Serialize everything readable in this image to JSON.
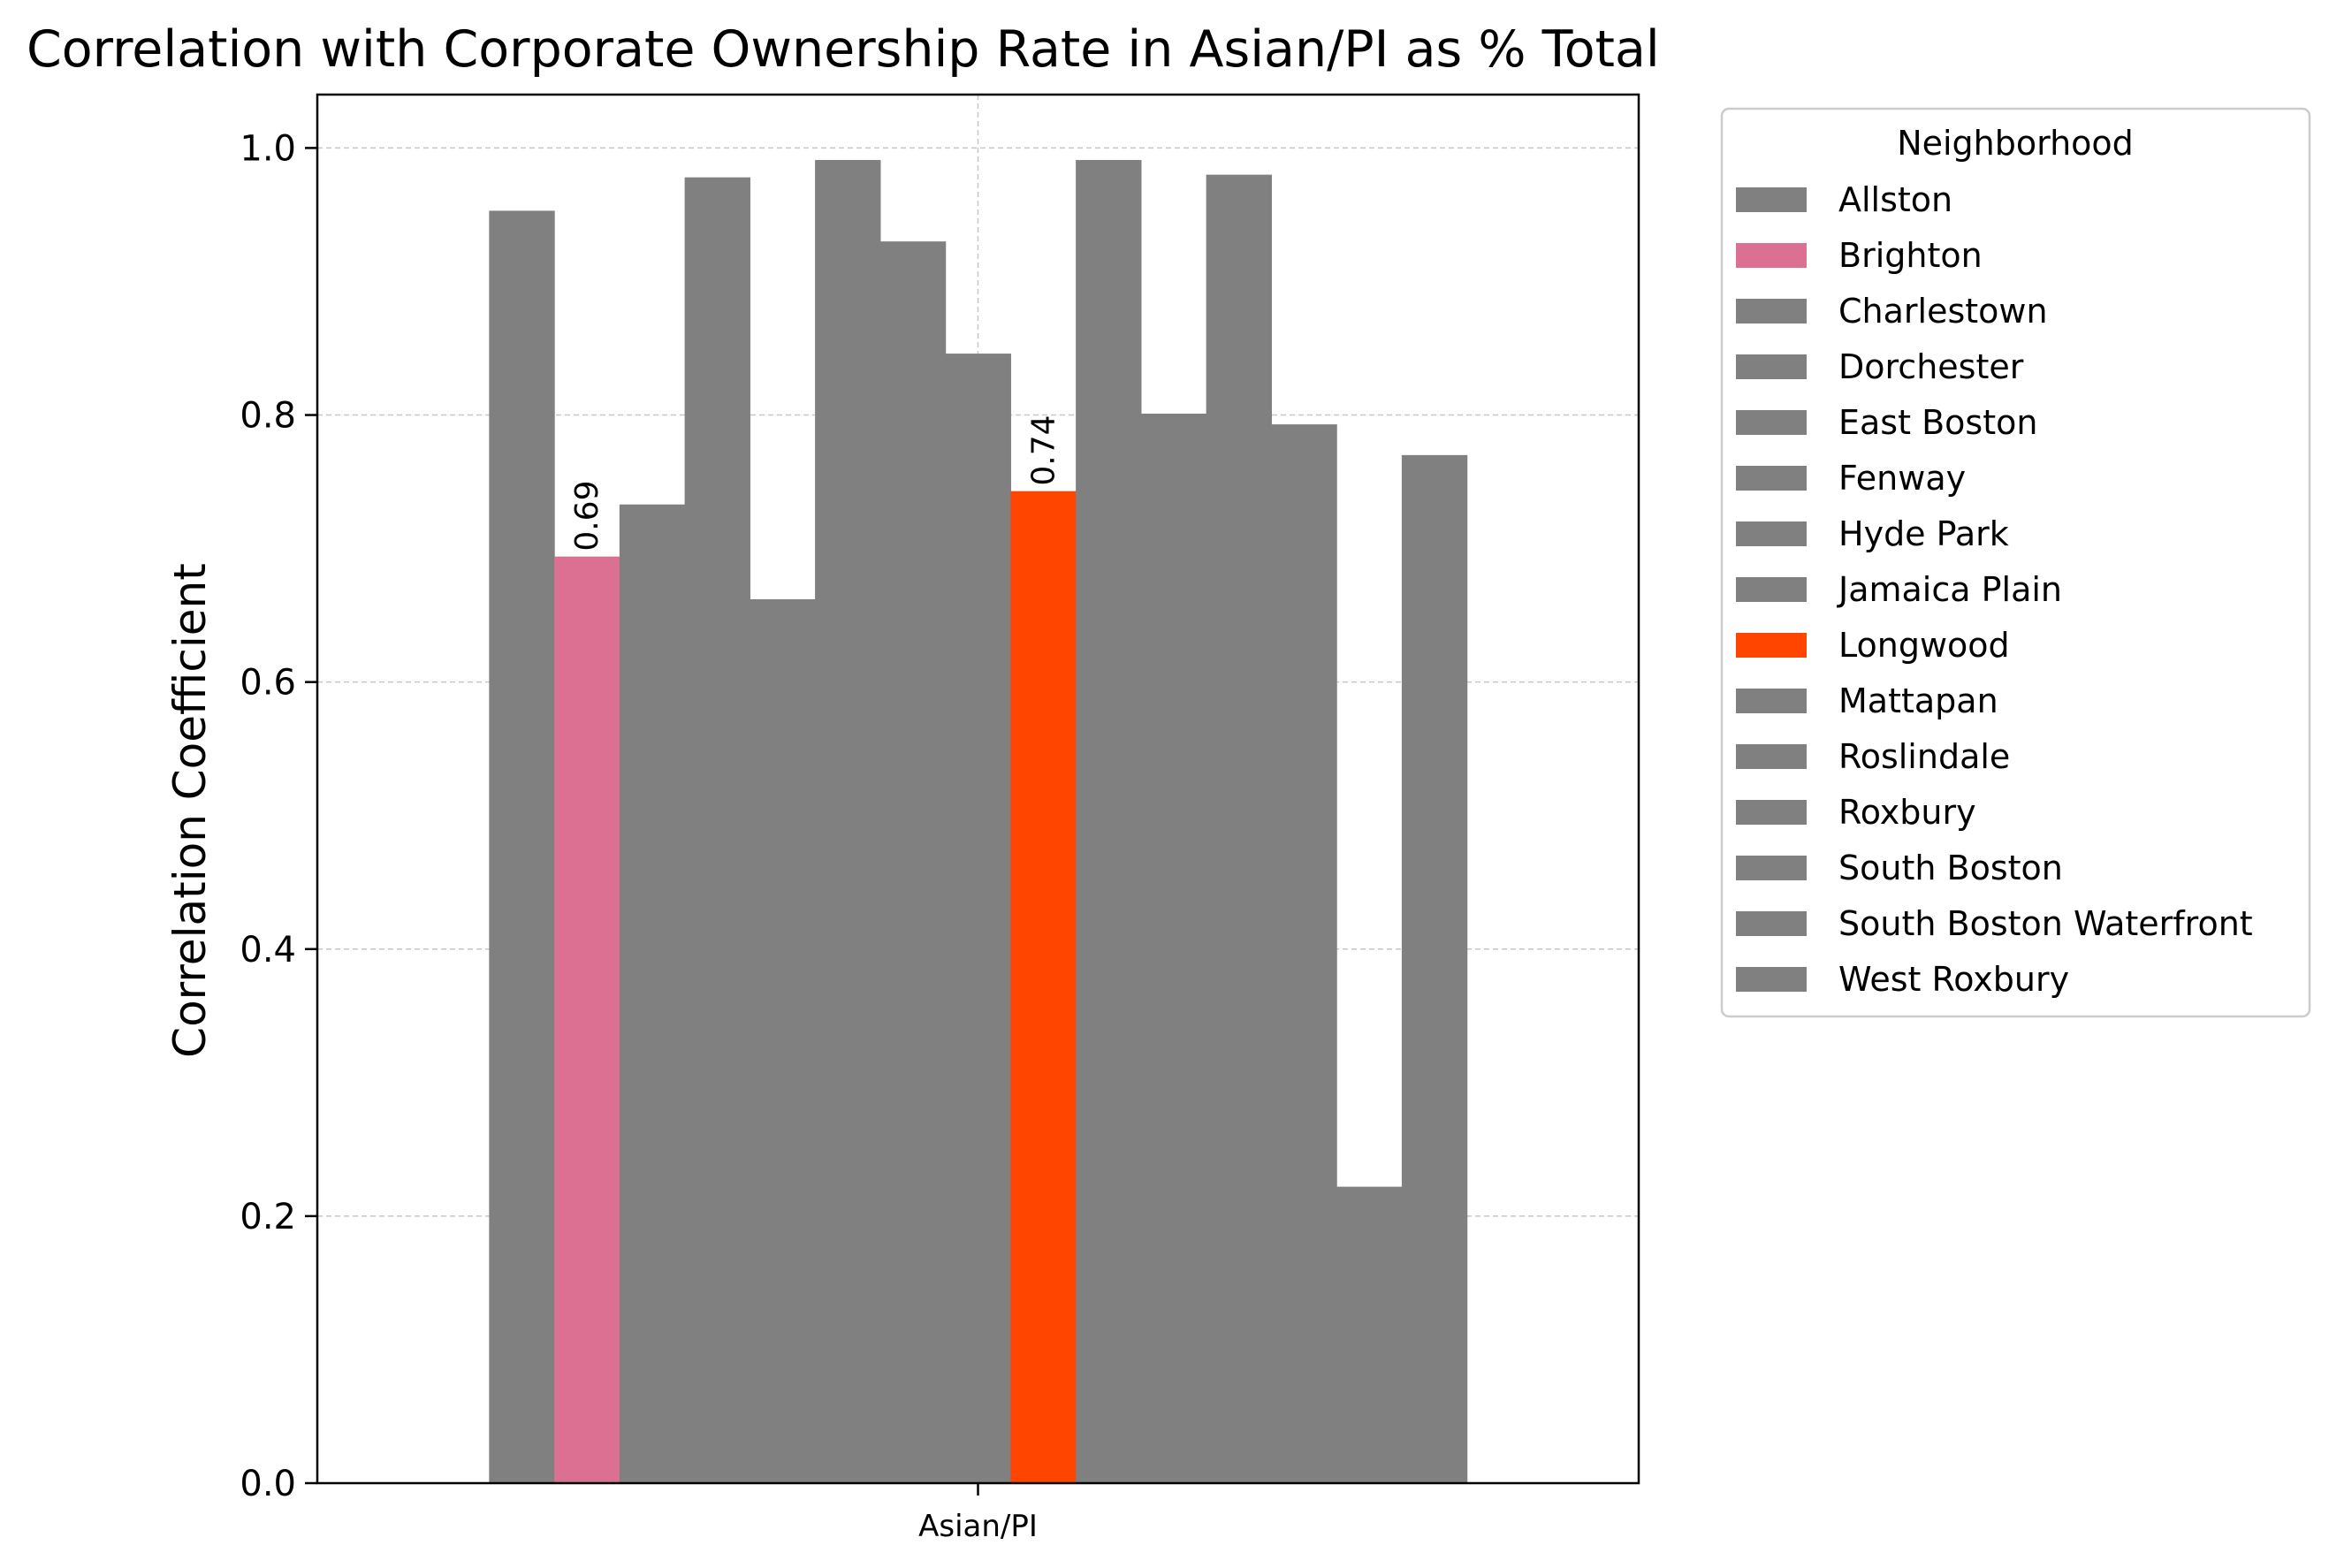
{
  "chart_data": {
    "type": "bar",
    "title": "Correlation with Corporate Ownership Rate in Asian/PI as % Total",
    "xlabel": "",
    "ylabel": "Correlation Coefficient",
    "categories": [
      "Asian/PI"
    ],
    "ylim": [
      0,
      1.04
    ],
    "xlim": [
      -0.5,
      0.5
    ],
    "yticks": [
      "0.0",
      "0.2",
      "0.4",
      "0.6",
      "0.8",
      "1.0"
    ],
    "grid": true,
    "legend": {
      "title": "Neighborhood",
      "position": "outside-right"
    },
    "series": [
      {
        "name": "Allston",
        "values": [
          0.953
        ],
        "color": "#808080"
      },
      {
        "name": "Brighton",
        "values": [
          0.694
        ],
        "color": "#DB7093",
        "label": "0.69"
      },
      {
        "name": "Charlestown",
        "values": [
          0.733
        ],
        "color": "#808080"
      },
      {
        "name": "Dorchester",
        "values": [
          0.978
        ],
        "color": "#808080"
      },
      {
        "name": "East Boston",
        "values": [
          0.662
        ],
        "color": "#808080"
      },
      {
        "name": "Fenway",
        "values": [
          0.991
        ],
        "color": "#808080"
      },
      {
        "name": "Hyde Park",
        "values": [
          0.93
        ],
        "color": "#808080"
      },
      {
        "name": "Jamaica Plain",
        "values": [
          0.846
        ],
        "color": "#808080"
      },
      {
        "name": "Longwood",
        "values": [
          0.743
        ],
        "color": "#FF4500",
        "label": "0.74"
      },
      {
        "name": "Mattapan",
        "values": [
          0.991
        ],
        "color": "#808080"
      },
      {
        "name": "Roslindale",
        "values": [
          0.801
        ],
        "color": "#808080"
      },
      {
        "name": "Roxbury",
        "values": [
          0.98
        ],
        "color": "#808080"
      },
      {
        "name": "South Boston",
        "values": [
          0.793
        ],
        "color": "#808080"
      },
      {
        "name": "South Boston Waterfront",
        "values": [
          0.222
        ],
        "color": "#808080"
      },
      {
        "name": "West Roxbury",
        "values": [
          0.77
        ],
        "color": "#808080"
      }
    ]
  }
}
